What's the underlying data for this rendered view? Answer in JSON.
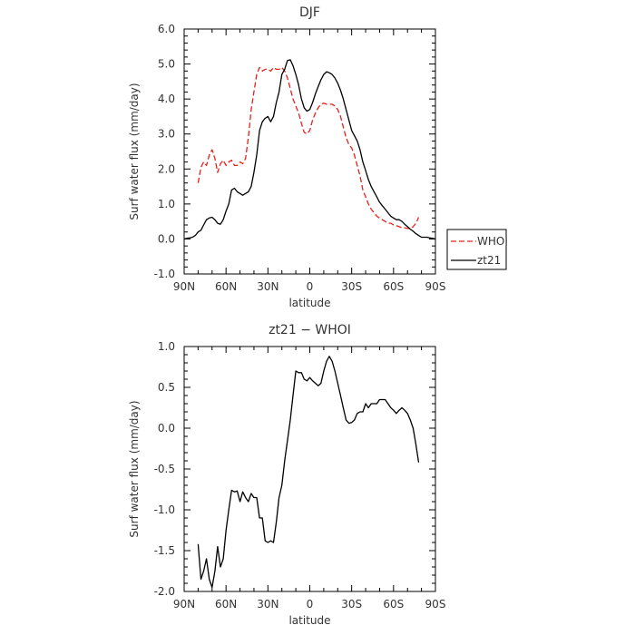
{
  "chart_data": [
    {
      "type": "line",
      "title": "DJF",
      "xlabel": "latitude",
      "ylabel": "Surf water flux (mm/day)",
      "xlim": [
        90,
        -90
      ],
      "ylim": [
        -1.0,
        6.0
      ],
      "xticks": [
        90,
        60,
        30,
        0,
        -30,
        -60,
        -90
      ],
      "xticklabels": [
        "90N",
        "60N",
        "30N",
        "0",
        "30S",
        "60S",
        "90S"
      ],
      "yticks": [
        -1,
        0,
        1,
        2,
        3,
        4,
        5,
        6
      ],
      "yticklabels": [
        "-1.0",
        "0.0",
        "1.0",
        "2.0",
        "3.0",
        "4.0",
        "5.0",
        "6.0"
      ],
      "legend_position": "outside-right",
      "series": [
        {
          "name": "WHOI",
          "color": "#e8201a",
          "style": "dashed",
          "x": [
            80,
            78,
            76,
            74,
            72,
            70,
            68,
            66,
            64,
            62,
            60,
            58,
            56,
            54,
            52,
            50,
            48,
            46,
            44,
            42,
            40,
            38,
            36,
            34,
            32,
            30,
            28,
            26,
            24,
            22,
            20,
            18,
            16,
            14,
            12,
            10,
            8,
            6,
            4,
            2,
            0,
            -2,
            -4,
            -6,
            -8,
            -10,
            -12,
            -14,
            -16,
            -18,
            -20,
            -22,
            -24,
            -26,
            -28,
            -30,
            -32,
            -34,
            -36,
            -38,
            -40,
            -42,
            -44,
            -46,
            -48,
            -50,
            -52,
            -54,
            -56,
            -58,
            -60,
            -62,
            -64,
            -66,
            -68,
            -70,
            -72,
            -74,
            -76,
            -78
          ],
          "y": [
            1.6,
            2.05,
            2.2,
            2.1,
            2.4,
            2.55,
            2.3,
            1.9,
            2.15,
            2.25,
            2.1,
            2.2,
            2.25,
            2.1,
            2.1,
            2.2,
            2.15,
            2.3,
            2.9,
            3.7,
            4.2,
            4.7,
            4.9,
            4.8,
            4.85,
            4.85,
            4.8,
            4.9,
            4.85,
            4.85,
            4.9,
            4.8,
            4.6,
            4.3,
            4.0,
            3.8,
            3.6,
            3.3,
            3.05,
            3.0,
            3.1,
            3.4,
            3.6,
            3.75,
            3.85,
            3.88,
            3.85,
            3.85,
            3.85,
            3.8,
            3.7,
            3.5,
            3.2,
            2.9,
            2.7,
            2.6,
            2.4,
            2.1,
            1.8,
            1.4,
            1.2,
            1.0,
            0.85,
            0.75,
            0.65,
            0.6,
            0.55,
            0.5,
            0.45,
            0.45,
            0.4,
            0.38,
            0.35,
            0.32,
            0.32,
            0.3,
            0.3,
            0.35,
            0.45,
            0.62
          ]
        },
        {
          "name": "zt21",
          "color": "#000000",
          "style": "solid",
          "x": [
            90,
            88,
            86,
            84,
            82,
            80,
            78,
            76,
            74,
            72,
            70,
            68,
            66,
            64,
            62,
            60,
            58,
            56,
            54,
            52,
            50,
            48,
            46,
            44,
            42,
            40,
            38,
            36,
            34,
            32,
            30,
            28,
            26,
            24,
            22,
            20,
            18,
            16,
            14,
            12,
            10,
            8,
            6,
            4,
            2,
            0,
            -2,
            -4,
            -6,
            -8,
            -10,
            -12,
            -14,
            -16,
            -18,
            -20,
            -22,
            -24,
            -26,
            -28,
            -30,
            -32,
            -34,
            -36,
            -38,
            -40,
            -42,
            -44,
            -46,
            -48,
            -50,
            -52,
            -54,
            -56,
            -58,
            -60,
            -62,
            -64,
            -66,
            -68,
            -70,
            -72,
            -74,
            -76,
            -78,
            -80,
            -82,
            -84,
            -86,
            -88,
            -90
          ],
          "y": [
            0.0,
            0.02,
            0.03,
            0.05,
            0.1,
            0.2,
            0.25,
            0.4,
            0.55,
            0.6,
            0.62,
            0.55,
            0.45,
            0.42,
            0.55,
            0.8,
            1.0,
            1.4,
            1.45,
            1.35,
            1.3,
            1.25,
            1.3,
            1.35,
            1.5,
            1.9,
            2.4,
            3.1,
            3.35,
            3.45,
            3.5,
            3.35,
            3.5,
            3.9,
            4.2,
            4.7,
            4.85,
            5.1,
            5.12,
            4.95,
            4.7,
            4.4,
            4.0,
            3.75,
            3.65,
            3.7,
            3.9,
            4.15,
            4.35,
            4.55,
            4.7,
            4.78,
            4.75,
            4.7,
            4.6,
            4.45,
            4.25,
            4.0,
            3.7,
            3.4,
            3.1,
            2.95,
            2.8,
            2.55,
            2.2,
            1.95,
            1.7,
            1.5,
            1.35,
            1.2,
            1.05,
            0.95,
            0.85,
            0.75,
            0.65,
            0.6,
            0.55,
            0.55,
            0.5,
            0.42,
            0.35,
            0.28,
            0.22,
            0.15,
            0.1,
            0.05,
            0.05,
            0.05,
            0.03,
            0.02,
            0.0
          ]
        }
      ]
    },
    {
      "type": "line",
      "title": "zt21 − WHOI",
      "xlabel": "latitude",
      "ylabel": "Surf water flux (mm/day)",
      "xlim": [
        90,
        -90
      ],
      "ylim": [
        -2.0,
        1.0
      ],
      "xticks": [
        90,
        60,
        30,
        0,
        -30,
        -60,
        -90
      ],
      "xticklabels": [
        "90N",
        "60N",
        "30N",
        "0",
        "30S",
        "60S",
        "90S"
      ],
      "yticks": [
        -2.0,
        -1.5,
        -1.0,
        -0.5,
        0.0,
        0.5,
        1.0
      ],
      "yticklabels": [
        "-2.0",
        "-1.5",
        "-1.0",
        "-0.5",
        "0.0",
        "0.5",
        "1.0"
      ],
      "series": [
        {
          "color": "#000000",
          "style": "solid",
          "x": [
            80,
            78,
            76,
            74,
            72,
            70,
            68,
            66,
            64,
            62,
            60,
            58,
            56,
            54,
            52,
            50,
            48,
            46,
            44,
            42,
            40,
            38,
            36,
            34,
            32,
            30,
            28,
            26,
            24,
            22,
            20,
            18,
            16,
            14,
            12,
            10,
            8,
            6,
            4,
            2,
            0,
            -2,
            -4,
            -6,
            -8,
            -10,
            -12,
            -14,
            -16,
            -18,
            -20,
            -22,
            -24,
            -26,
            -28,
            -30,
            -32,
            -34,
            -36,
            -38,
            -40,
            -42,
            -44,
            -46,
            -48,
            -50,
            -52,
            -54,
            -56,
            -58,
            -60,
            -62,
            -64,
            -66,
            -68,
            -70,
            -72,
            -74,
            -76,
            -78
          ],
          "y": [
            -1.42,
            -1.85,
            -1.75,
            -1.6,
            -1.85,
            -1.95,
            -1.75,
            -1.45,
            -1.7,
            -1.6,
            -1.25,
            -1.0,
            -0.76,
            -0.78,
            -0.77,
            -0.9,
            -0.78,
            -0.85,
            -0.9,
            -0.8,
            -0.85,
            -0.85,
            -1.1,
            -1.1,
            -1.38,
            -1.4,
            -1.38,
            -1.4,
            -1.15,
            -0.85,
            -0.7,
            -0.4,
            -0.15,
            0.1,
            0.4,
            0.7,
            0.68,
            0.68,
            0.6,
            0.58,
            0.62,
            0.58,
            0.55,
            0.52,
            0.55,
            0.7,
            0.82,
            0.88,
            0.82,
            0.7,
            0.55,
            0.4,
            0.25,
            0.1,
            0.06,
            0.07,
            0.1,
            0.18,
            0.2,
            0.2,
            0.3,
            0.25,
            0.3,
            0.3,
            0.3,
            0.35,
            0.35,
            0.35,
            0.3,
            0.25,
            0.22,
            0.18,
            0.22,
            0.25,
            0.22,
            0.18,
            0.1,
            0.0,
            -0.2,
            -0.42
          ]
        }
      ]
    }
  ]
}
